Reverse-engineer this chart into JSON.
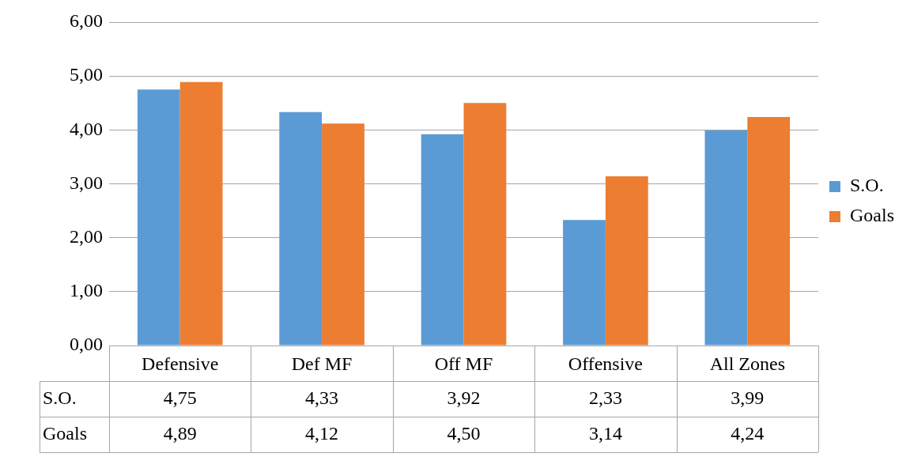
{
  "chart_data": {
    "type": "bar",
    "categories": [
      "Defensive",
      "Def MF",
      "Off MF",
      "Offensive",
      "All Zones"
    ],
    "series": [
      {
        "name": "S.O.",
        "color": "#5b9bd5",
        "values": [
          4.75,
          4.33,
          3.92,
          2.33,
          3.99
        ],
        "value_labels": [
          "4,75",
          "4,33",
          "3,92",
          "2,33",
          "3,99"
        ]
      },
      {
        "name": "Goals",
        "color": "#ed7d31",
        "values": [
          4.89,
          4.12,
          4.5,
          3.14,
          4.24
        ],
        "value_labels": [
          "4,89",
          "4,12",
          "4,50",
          "3,14",
          "4,24"
        ]
      }
    ],
    "ylim": [
      0,
      6
    ],
    "yticks": [
      {
        "value": 0,
        "label": "0,00"
      },
      {
        "value": 1,
        "label": "1,00"
      },
      {
        "value": 2,
        "label": "2,00"
      },
      {
        "value": 3,
        "label": "3,00"
      },
      {
        "value": 4,
        "label": "4,00"
      },
      {
        "value": 5,
        "label": "5,00"
      },
      {
        "value": 6,
        "label": "6,00"
      }
    ],
    "grid": "y",
    "legend": "right"
  }
}
